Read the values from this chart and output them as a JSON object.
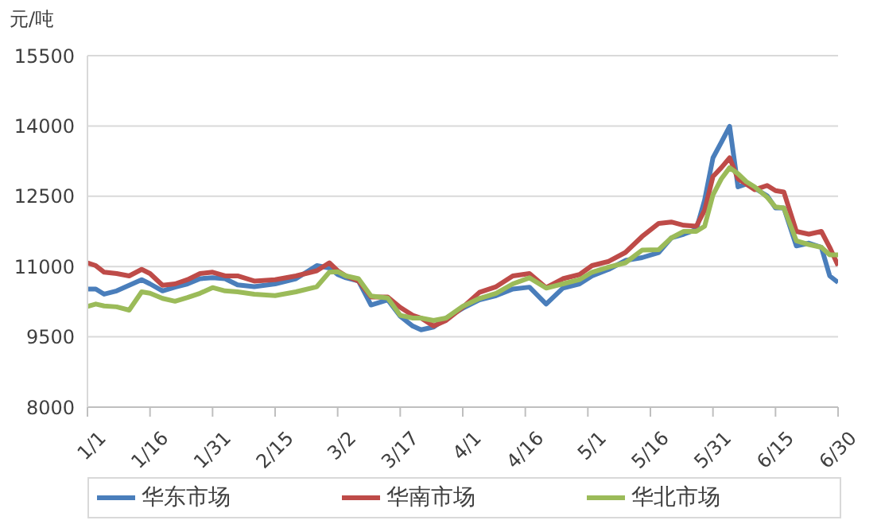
{
  "chart_data": {
    "type": "line",
    "ylabel": "元/吨",
    "x": [
      "--01-01",
      "--01-03",
      "--01-05",
      "--01-08",
      "--01-11",
      "--01-14",
      "--01-16",
      "--01-19",
      "--01-22",
      "--01-25",
      "--01-28",
      "--01-31",
      "--02-03",
      "--02-06",
      "--02-10",
      "--02-15",
      "--02-20",
      "--02-25",
      "--02-28",
      "--03-02",
      "--03-04",
      "--03-07",
      "--03-10",
      "--03-14",
      "--03-17",
      "--03-20",
      "--03-22",
      "--03-25",
      "--03-28",
      "--04-01",
      "--04-05",
      "--04-09",
      "--04-13",
      "--04-17",
      "--04-21",
      "--04-25",
      "--04-29",
      "--05-02",
      "--05-06",
      "--05-10",
      "--05-14",
      "--05-18",
      "--05-21",
      "--05-24",
      "--05-27",
      "--05-29",
      "--05-31",
      "--06-02",
      "--06-04",
      "--06-06",
      "--06-08",
      "--06-10",
      "--06-13",
      "--06-15",
      "--06-17",
      "--06-20",
      "--06-23",
      "--06-26",
      "--06-28",
      "--06-30"
    ],
    "series": [
      {
        "name": "华东市场",
        "color": "#4a7ebb",
        "values": [
          10520,
          10520,
          10410,
          10480,
          10600,
          10720,
          10630,
          10480,
          10560,
          10630,
          10740,
          10760,
          10740,
          10610,
          10570,
          10630,
          10740,
          11020,
          10970,
          10830,
          10760,
          10690,
          10180,
          10290,
          9940,
          9730,
          9650,
          9710,
          9900,
          10110,
          10290,
          10380,
          10520,
          10560,
          10200,
          10540,
          10630,
          10800,
          10940,
          11130,
          11190,
          11300,
          11610,
          11690,
          11790,
          12420,
          13320,
          13650,
          13990,
          12700,
          12760,
          12670,
          12510,
          12250,
          12250,
          11440,
          11500,
          11410,
          10800,
          10660
        ]
      },
      {
        "name": "华南市场",
        "color": "#be4b48",
        "values": [
          11080,
          11020,
          10880,
          10850,
          10800,
          10940,
          10850,
          10600,
          10630,
          10720,
          10850,
          10880,
          10800,
          10800,
          10690,
          10720,
          10800,
          10910,
          11080,
          10910,
          10800,
          10690,
          10350,
          10350,
          10130,
          9960,
          9900,
          9730,
          9850,
          10130,
          10450,
          10570,
          10800,
          10850,
          10550,
          10740,
          10830,
          11020,
          11110,
          11300,
          11640,
          11920,
          11950,
          11880,
          11860,
          12200,
          12920,
          13110,
          13320,
          12870,
          12760,
          12640,
          12730,
          12620,
          12590,
          11750,
          11690,
          11750,
          11410,
          11020
        ]
      },
      {
        "name": "华北市场",
        "color": "#9bbb59",
        "values": [
          10150,
          10200,
          10160,
          10140,
          10070,
          10460,
          10430,
          10320,
          10260,
          10340,
          10430,
          10550,
          10480,
          10460,
          10410,
          10380,
          10460,
          10570,
          10880,
          10890,
          10800,
          10740,
          10370,
          10330,
          9960,
          9900,
          9900,
          9850,
          9900,
          10150,
          10320,
          10430,
          10630,
          10760,
          10540,
          10630,
          10720,
          10880,
          10990,
          11080,
          11350,
          11360,
          11610,
          11750,
          11750,
          11860,
          12530,
          12870,
          13110,
          12980,
          12810,
          12700,
          12480,
          12270,
          12250,
          11550,
          11470,
          11410,
          11250,
          11250
        ]
      }
    ],
    "xlim": [
      "--01-01",
      "--06-30"
    ],
    "xticks": [
      {
        "value": "--01-01",
        "label": "1/1"
      },
      {
        "value": "--01-16",
        "label": "1/16"
      },
      {
        "value": "--01-31",
        "label": "1/31"
      },
      {
        "value": "--02-15",
        "label": "2/15"
      },
      {
        "value": "--03-02",
        "label": "3/2"
      },
      {
        "value": "--03-17",
        "label": "3/17"
      },
      {
        "value": "--04-01",
        "label": "4/1"
      },
      {
        "value": "--04-16",
        "label": "4/16"
      },
      {
        "value": "--05-01",
        "label": "5/1"
      },
      {
        "value": "--05-16",
        "label": "5/16"
      },
      {
        "value": "--05-31",
        "label": "5/31"
      },
      {
        "value": "--06-15",
        "label": "6/15"
      },
      {
        "value": "--06-30",
        "label": "6/30"
      }
    ],
    "ylim": [
      8000,
      15500
    ],
    "yticks": [
      8000,
      9500,
      11000,
      12500,
      14000,
      15500
    ],
    "grid": "y",
    "legend": "bottom",
    "marker": "none",
    "line_style": "solid"
  }
}
